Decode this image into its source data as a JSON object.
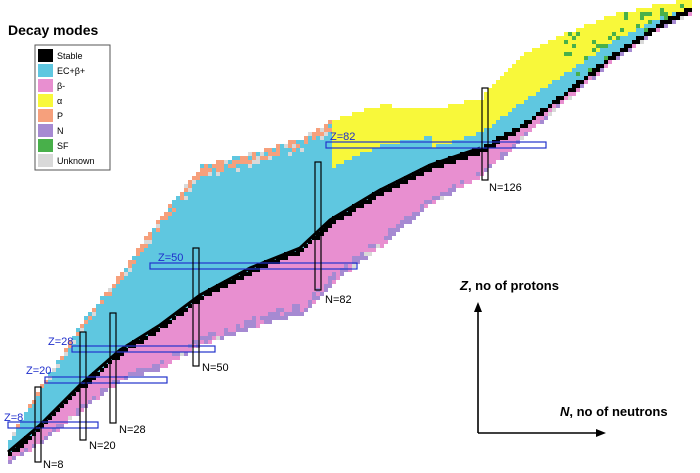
{
  "legend": {
    "title": "Decay modes",
    "items": [
      {
        "label": "Stable",
        "color": "#000000"
      },
      {
        "label": "EC+β+",
        "color": "#5fc7e0"
      },
      {
        "label": "β-",
        "color": "#e88fd0"
      },
      {
        "label": "α",
        "color": "#f8f83a"
      },
      {
        "label": "P",
        "color": "#f6a07c"
      },
      {
        "label": "N",
        "color": "#a68ad2"
      },
      {
        "label": "SF",
        "color": "#48b04a"
      },
      {
        "label": "Unknown",
        "color": "#d9d9d9"
      }
    ]
  },
  "magic_numbers": {
    "proton_labels": [
      "Z=8",
      "Z=20",
      "Z=28",
      "Z=50",
      "Z=82"
    ],
    "neutron_labels": [
      "N=8",
      "N=20",
      "N=28",
      "N=50",
      "N=82",
      "N=126"
    ]
  },
  "axes": {
    "z_label_var": "Z",
    "z_label_rest": ", no of protons",
    "n_label_var": "N",
    "n_label_rest": ", no of neutrons"
  }
}
